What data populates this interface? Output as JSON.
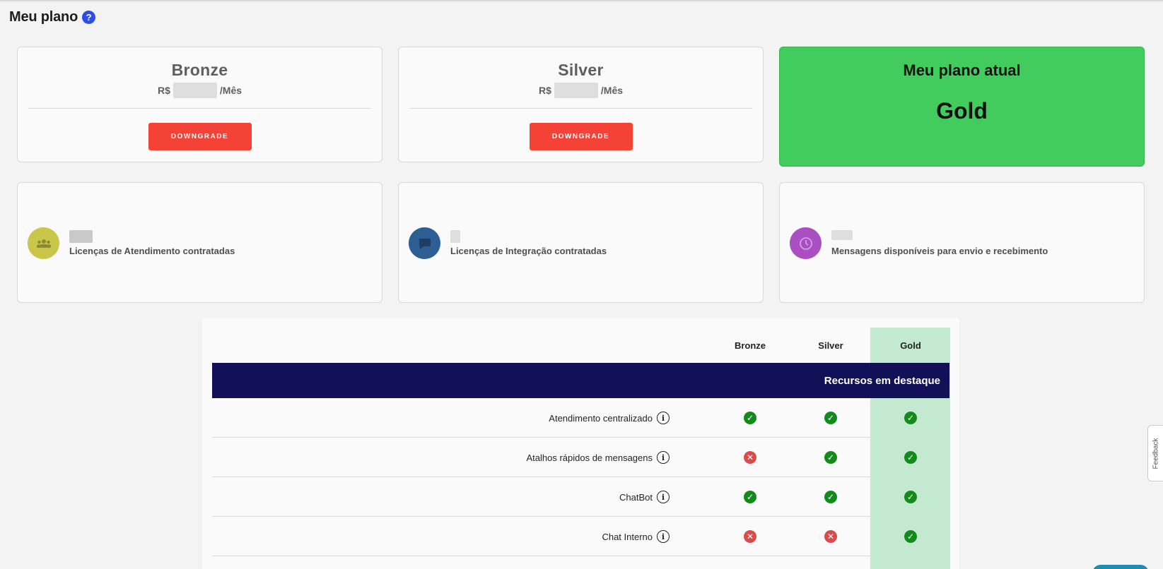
{
  "header": {
    "title": "Meu plano",
    "help_icon": "?"
  },
  "plans": [
    {
      "name": "Bronze",
      "currency": "R$",
      "period": "/Mês",
      "action": "DOWNGRADE"
    },
    {
      "name": "Silver",
      "currency": "R$",
      "period": "/Mês",
      "action": "DOWNGRADE"
    }
  ],
  "current": {
    "title": "Meu plano atual",
    "plan": "Gold",
    "color": "#42cc5e"
  },
  "stats": [
    {
      "label": "Licenças de Atendimento contratadas",
      "icon": "group-icon",
      "color": "#c9c64a"
    },
    {
      "label": "Licenças de Integração contratadas",
      "icon": "chat-icon",
      "color": "#2e5f94"
    },
    {
      "label": "Mensagens disponíveis para envio e recebimento",
      "icon": "clock-icon",
      "color": "#a94fc1"
    }
  ],
  "table": {
    "columns": [
      "Bronze",
      "Silver",
      "Gold"
    ],
    "section": "Recursos em destaque",
    "rows": [
      {
        "label": "Atendimento centralizado",
        "values": [
          true,
          true,
          true
        ]
      },
      {
        "label": "Atalhos rápidos de mensagens",
        "values": [
          false,
          true,
          true
        ]
      },
      {
        "label": "ChatBot",
        "values": [
          true,
          true,
          true
        ]
      },
      {
        "label": "Chat Interno",
        "values": [
          false,
          false,
          true
        ]
      }
    ]
  },
  "feedback": {
    "label": "Feedback"
  }
}
